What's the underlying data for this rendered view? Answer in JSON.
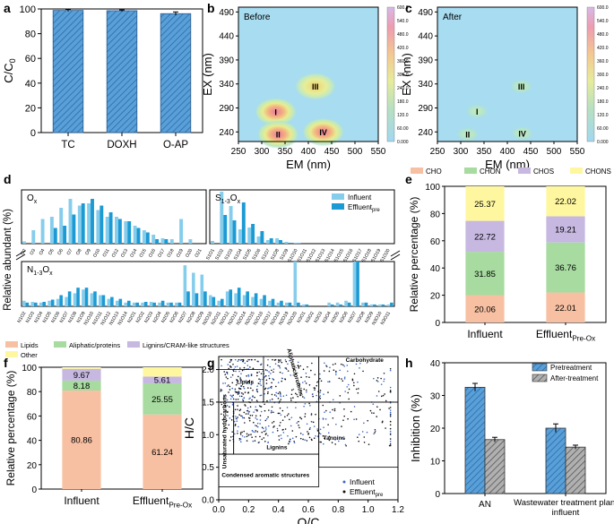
{
  "chart_data": [
    {
      "panel": "a",
      "type": "bar",
      "ylabel": "C/C0",
      "categories": [
        "TC",
        "DOXH",
        "O-AP"
      ],
      "values": [
        98.8,
        98.6,
        96.2
      ],
      "errors": [
        0.8,
        0.6,
        1.4
      ],
      "ylim": [
        0,
        100
      ],
      "yticks": [
        "0",
        "20",
        "40",
        "60",
        "80",
        "100"
      ],
      "bar_color": "#5aa0d8"
    },
    {
      "panel": "b",
      "type": "heatmap",
      "title": "Before",
      "xlabel": "EM (nm)",
      "ylabel": "EX (nm)",
      "xlim": [
        250,
        550
      ],
      "ylim": [
        220,
        500
      ],
      "xticks": [
        "250",
        "300",
        "350",
        "400",
        "450",
        "500",
        "550"
      ],
      "yticks": [
        "240",
        "290",
        "340",
        "390",
        "440",
        "490"
      ],
      "regions": [
        {
          "label": "I",
          "em": 330,
          "ex": 282,
          "intensity": 520
        },
        {
          "label": "II",
          "em": 335,
          "ex": 235,
          "intensity": 560
        },
        {
          "label": "III",
          "em": 415,
          "ex": 335,
          "intensity": 420
        },
        {
          "label": "IV",
          "em": 432,
          "ex": 240,
          "intensity": 600
        }
      ],
      "colorbar": [
        "0.000",
        "60.00",
        "120.0",
        "180.0",
        "240.0",
        "300.0",
        "360.0",
        "420.0",
        "480.0",
        "540.0",
        "600.0"
      ]
    },
    {
      "panel": "c",
      "type": "heatmap",
      "title": "After",
      "xlabel": "EM (nm)",
      "ylabel": "EX (nm)",
      "xlim": [
        250,
        550
      ],
      "ylim": [
        220,
        500
      ],
      "xticks": [
        "250",
        "300",
        "350",
        "400",
        "450",
        "500",
        "550"
      ],
      "yticks": [
        "240",
        "290",
        "340",
        "390",
        "440",
        "490"
      ],
      "regions": [
        {
          "label": "I",
          "em": 335,
          "ex": 283,
          "intensity": 160
        },
        {
          "label": "II",
          "em": 315,
          "ex": 235,
          "intensity": 150
        },
        {
          "label": "III",
          "em": 430,
          "ex": 335,
          "intensity": 120
        },
        {
          "label": "IV",
          "em": 432,
          "ex": 237,
          "intensity": 170
        }
      ],
      "colorbar": [
        "0.000",
        "60.00",
        "120.0",
        "180.0",
        "240.0",
        "300.0",
        "360.0",
        "420.0",
        "480.0",
        "540.0",
        "600.0"
      ]
    },
    {
      "panel": "d",
      "type": "bar",
      "ylabel": "Relative abundant (%)",
      "series_names": [
        "Influent",
        "Effluent"
      ],
      "series_sub": "pre",
      "subgroups": [
        {
          "name": "Ox",
          "label_main": "O",
          "label_sub": "x",
          "ylim": [
            0,
            1.2
          ],
          "categories": [
            "O2",
            "O3",
            "O4",
            "O5",
            "O6",
            "O7",
            "O8",
            "O9",
            "O10",
            "O11",
            "O12",
            "O13",
            "O14",
            "O15",
            "O16",
            "O17",
            "O18",
            "O19",
            "O20",
            "O21"
          ],
          "influent": [
            0.05,
            0.3,
            0.55,
            0.6,
            0.8,
            1.0,
            0.85,
            0.9,
            0.75,
            0.6,
            0.6,
            0.5,
            0.4,
            0.3,
            0.2,
            0.12,
            0.1,
            0.55,
            0.1,
            0.0
          ],
          "effluent": [
            0.0,
            0.0,
            0.0,
            0.35,
            0.4,
            0.65,
            0.9,
            1.0,
            0.85,
            0.7,
            0.55,
            0.5,
            0.35,
            0.25,
            0.1,
            0.1,
            0.0,
            0.0,
            0.0,
            0.0
          ]
        },
        {
          "name": "S1-3Ox",
          "label_main": "S",
          "label_sub": "1-3",
          "label_tail": "O",
          "label_tail_sub": "x",
          "ylim": [
            0,
            30
          ],
          "categories": [
            "S1O1",
            "S1O2",
            "S1O3",
            "S1O4",
            "S1O5",
            "S1O6",
            "S1O7",
            "S1O8",
            "S1O9",
            "S1O10",
            "S1O11",
            "S1O12",
            "S1O13",
            "S1O14",
            "S1O15",
            "S1O16",
            "S1O17",
            "S1O18",
            "S1O19",
            "S1O20"
          ],
          "influent": [
            1.5,
            29,
            21,
            8,
            9,
            4,
            2,
            3,
            1,
            0.5,
            0,
            0,
            0,
            0,
            0,
            0,
            0,
            0,
            0,
            0
          ],
          "effluent": [
            0,
            16,
            13,
            23,
            11,
            7,
            3,
            2,
            0.5,
            0.3,
            0,
            0,
            0,
            0,
            0,
            0,
            0,
            0,
            0,
            0
          ]
        },
        {
          "name": "N1-3Ox",
          "label_main": "N",
          "label_sub": "1-3",
          "label_tail": "O",
          "label_tail_sub": "x",
          "ylim": [
            0,
            1.2
          ],
          "categories": [
            "N1O2",
            "N1O3",
            "N1O4",
            "N1O5",
            "N1O6",
            "N1O7",
            "N1O8",
            "N1O9",
            "N1O10",
            "N1O11",
            "N1O12",
            "N1O13",
            "N1O14",
            "N2O1",
            "N2O2",
            "N2O3",
            "N2O4",
            "N2O5",
            "N2O6",
            "N2O7",
            "N2O8",
            "N2O9",
            "N2O10",
            "N2O11",
            "N2O12",
            "N2O13",
            "N2O14",
            "N2O15",
            "N2O16",
            "N2O17",
            "N2O18",
            "N2O19",
            "N2O20",
            "N3O1",
            "N3O2",
            "N3O3",
            "N3O4",
            "N3O5",
            "N3O6",
            "N3O7",
            "N3O8",
            "N3O9",
            "N3O10",
            "N3O11"
          ],
          "influent": [
            0.15,
            0.12,
            0.1,
            0.15,
            0.2,
            0.25,
            0.35,
            0.45,
            0.35,
            0.3,
            0.2,
            0.15,
            0.1,
            0.1,
            0.1,
            0.12,
            0.1,
            0.1,
            0.1,
            1.1,
            0.9,
            0.85,
            0.3,
            0.15,
            0.4,
            0.35,
            0.3,
            0.25,
            0.2,
            0.15,
            0.1,
            0.1,
            1.9,
            0.05,
            0.0,
            0.0,
            0.1,
            0.1,
            0.15,
            1.6,
            0.1,
            0.05,
            0.05,
            0.05
          ],
          "effluent": [
            0.1,
            0.1,
            0.12,
            0.18,
            0.3,
            0.4,
            0.5,
            0.5,
            0.4,
            0.3,
            0.25,
            0.2,
            0.15,
            0.1,
            0.12,
            0.1,
            0.15,
            0.1,
            0.1,
            0.4,
            0.35,
            0.4,
            0.25,
            0.2,
            0.45,
            0.5,
            0.4,
            0.35,
            0.3,
            0.2,
            0.15,
            0.1,
            0.1,
            0.05,
            0.0,
            0.0,
            0.05,
            0.05,
            0.1,
            1.5,
            0.1,
            0.05,
            0.05,
            0.1
          ]
        }
      ]
    },
    {
      "panel": "e",
      "type": "bar",
      "stacked": true,
      "ylabel": "Relative percentage (%)",
      "categories": [
        "Influent",
        "Effluent"
      ],
      "category_subs": [
        "",
        "Pre-Ox"
      ],
      "ylim": [
        0,
        100
      ],
      "yticks": [
        "0",
        "20",
        "40",
        "60",
        "80",
        "100"
      ],
      "legend": [
        "CHO",
        "CHON",
        "CHOS",
        "CHONS"
      ],
      "series": [
        {
          "name": "CHO",
          "values": [
            20.06,
            22.01
          ],
          "color": "#f8c0a2"
        },
        {
          "name": "CHON",
          "values": [
            31.85,
            36.76
          ],
          "color": "#a7dba0"
        },
        {
          "name": "CHOS",
          "values": [
            22.72,
            19.21
          ],
          "color": "#c6b8e0"
        },
        {
          "name": "CHONS",
          "values": [
            25.37,
            22.02
          ],
          "color": "#fff7a0"
        }
      ]
    },
    {
      "panel": "f",
      "type": "bar",
      "stacked": true,
      "ylabel": "Relative percentage (%)",
      "categories": [
        "Influent",
        "Effluent"
      ],
      "category_subs": [
        "",
        "Pre-Ox"
      ],
      "ylim": [
        0,
        100
      ],
      "yticks": [
        "0",
        "20",
        "40",
        "60",
        "80",
        "100"
      ],
      "legend": [
        "Lipids",
        "Aliphatic/proteins",
        "Lignins/CRAM-like structures",
        "Other"
      ],
      "series": [
        {
          "name": "Lipids",
          "values": [
            80.86,
            61.24
          ],
          "color": "#f8c0a2"
        },
        {
          "name": "Aliphatic/proteins",
          "values": [
            8.18,
            25.55
          ],
          "color": "#a7dba0"
        },
        {
          "name": "Lignins/CRAM-like structures",
          "values": [
            9.67,
            5.61
          ],
          "color": "#c6b8e0"
        },
        {
          "name": "Other",
          "values": [
            1.29,
            7.6
          ],
          "color": "#fff7a0"
        }
      ]
    },
    {
      "panel": "g",
      "type": "scatter",
      "xlabel": "O/C",
      "ylabel": "H/C",
      "xlim": [
        0,
        1.2
      ],
      "ylim": [
        0,
        2.2
      ],
      "xticks": [
        "0.0",
        "0.2",
        "0.4",
        "0.6",
        "0.8",
        "1.0",
        "1.2"
      ],
      "yticks": [
        "0.0",
        "0.5",
        "1.0",
        "1.5",
        "2.0"
      ],
      "legend": [
        "Influent",
        "Effluent"
      ],
      "legend_sub": "pre",
      "regions": [
        "Lipids",
        "Aliphatic/proteins",
        "Carbohydrate",
        "Unsaturated hydrocarbons",
        "Lignins",
        "Tannins",
        "Condensed aromatic structures"
      ],
      "boxes": [
        {
          "name": "Lipids",
          "x": [
            0.0,
            0.3
          ],
          "y": [
            1.5,
            2.0
          ]
        },
        {
          "name": "Aliphatic/proteins",
          "x": [
            0.3,
            0.67
          ],
          "y": [
            1.5,
            2.2
          ]
        },
        {
          "name": "Carbohydrate",
          "x": [
            0.67,
            1.2
          ],
          "y": [
            1.5,
            2.4
          ]
        },
        {
          "name": "Unsaturated hydrocarbons",
          "x": [
            0.0,
            0.1
          ],
          "y": [
            0.7,
            1.5
          ]
        },
        {
          "name": "Lignins",
          "x": [
            0.1,
            0.67
          ],
          "y": [
            0.7,
            1.5
          ]
        },
        {
          "name": "Tannins",
          "x": [
            0.67,
            1.2
          ],
          "y": [
            0.5,
            1.5
          ]
        },
        {
          "name": "Condensed aromatic structures",
          "x": [
            0.0,
            0.67
          ],
          "y": [
            0.2,
            0.7
          ]
        }
      ]
    },
    {
      "panel": "h",
      "type": "bar",
      "ylabel": "Inhibition (%)",
      "categories": [
        "AN",
        "Wastewater treatment plant influent"
      ],
      "ylim": [
        0,
        40
      ],
      "yticks": [
        "0",
        "10",
        "20",
        "30",
        "40"
      ],
      "legend": [
        "Pretreatment",
        "After-treatment"
      ],
      "series": [
        {
          "name": "Pretreatment",
          "values": [
            32.5,
            20.0
          ],
          "errors": [
            1.2,
            1.3
          ],
          "color": "#5aa0d8"
        },
        {
          "name": "After-treatment",
          "values": [
            16.5,
            14.2
          ],
          "errors": [
            0.7,
            0.6
          ],
          "color": "#a8a8a8"
        }
      ]
    }
  ]
}
